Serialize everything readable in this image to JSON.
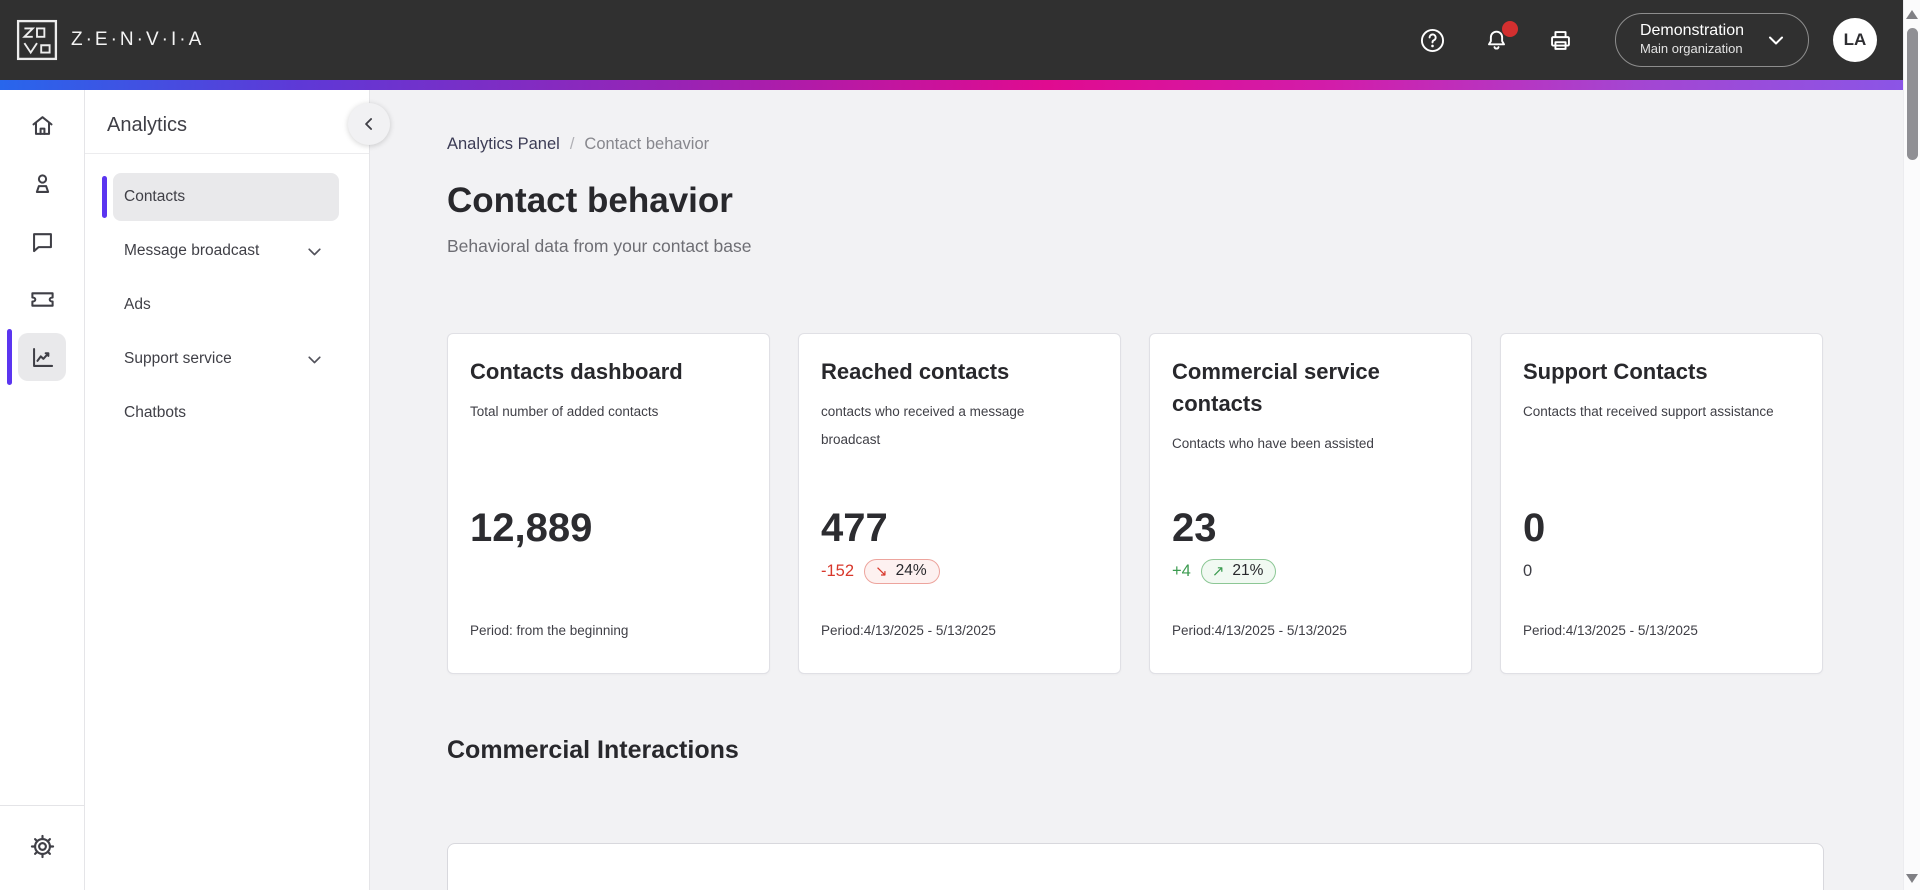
{
  "topbar": {
    "brand": "Z·E·N·V·I·A",
    "org": {
      "name": "Demonstration",
      "subtitle": "Main organization"
    },
    "avatar_initials": "LA"
  },
  "icon_rail": {
    "items": [
      {
        "icon": "home"
      },
      {
        "icon": "contacts"
      },
      {
        "icon": "conversations"
      },
      {
        "icon": "tickets"
      },
      {
        "icon": "analytics",
        "active": true
      }
    ],
    "footer_icon": "settings"
  },
  "sidebar": {
    "title": "Analytics",
    "items": [
      {
        "label": "Contacts",
        "active": true,
        "chevron": false
      },
      {
        "label": "Message broadcast",
        "active": false,
        "chevron": true
      },
      {
        "label": "Ads",
        "active": false,
        "chevron": false
      },
      {
        "label": "Support service",
        "active": false,
        "chevron": true
      },
      {
        "label": "Chatbots",
        "active": false,
        "chevron": false
      }
    ]
  },
  "breadcrumb": {
    "parent": "Analytics Panel",
    "separator": "/",
    "current": "Contact behavior"
  },
  "page": {
    "title": "Contact behavior",
    "subtitle": "Behavioral data from your contact base"
  },
  "cards": [
    {
      "title": "Contacts dashboard",
      "description": "Total number of added contacts",
      "value": "12,889",
      "delta": "",
      "delta_dir": "",
      "badge": "",
      "badge_arrow": "",
      "period": "Period: from the beginning"
    },
    {
      "title": "Reached contacts",
      "description": "contacts who received a message\nbroadcast",
      "value": "477",
      "delta": "-152",
      "delta_dir": "down",
      "badge": "24%",
      "badge_arrow": "↘",
      "period": "Period:4/13/2025 - 5/13/2025"
    },
    {
      "title": "Commercial service contacts",
      "description": "Contacts who have been assisted",
      "value": "23",
      "delta": "+4",
      "delta_dir": "up",
      "badge": "21%",
      "badge_arrow": "↗",
      "period": "Period:4/13/2025 - 5/13/2025"
    },
    {
      "title": "Support Contacts",
      "description": "Contacts that received support assistance",
      "value": "0",
      "delta": "0",
      "delta_dir": "none",
      "badge": "",
      "badge_arrow": "",
      "period": "Period:4/13/2025 - 5/13/2025"
    }
  ],
  "section_heading": "Commercial Interactions",
  "colors": {
    "topbar_bg": "#303030",
    "accent_purple": "#5b35f0",
    "gradient_left_blue": "#2866ec",
    "gradient_mid_pink": "#e00b90",
    "gradient_right_purple": "#8b55e6",
    "negative_red": "#d8382c",
    "positive_green": "#3c9b50",
    "notification_red": "#d32f2f"
  }
}
